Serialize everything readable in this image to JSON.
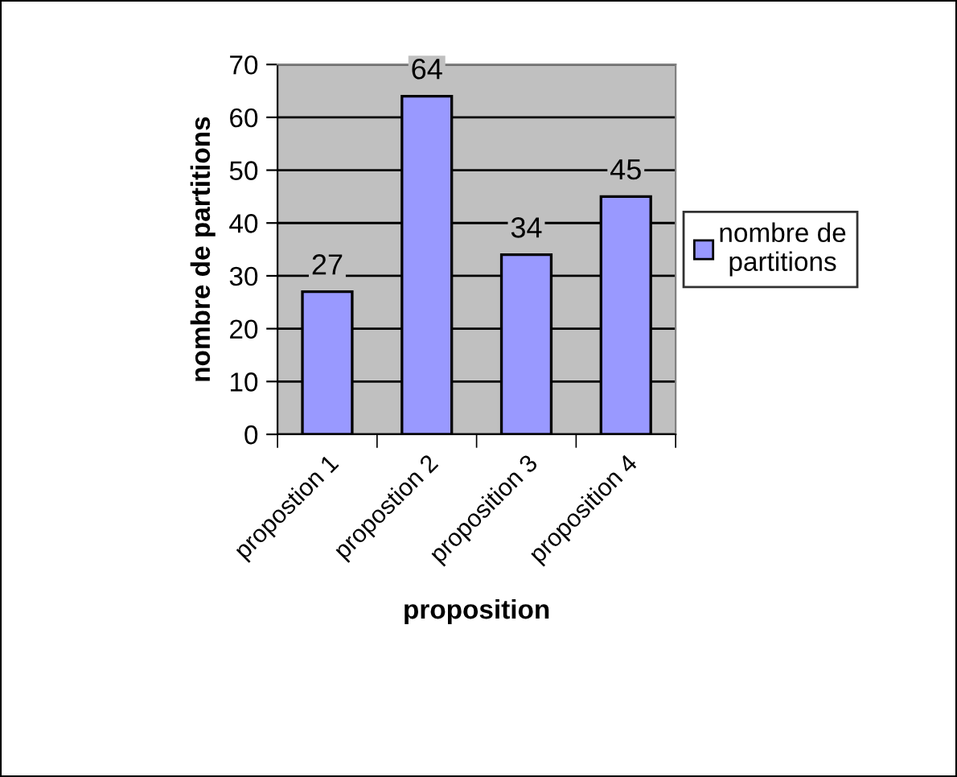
{
  "chart_data": {
    "type": "bar",
    "xlabel": "proposition",
    "ylabel": "nombre de partitions",
    "categories": [
      "propostion 1",
      "propostion 2",
      "proposition 3",
      "proposition 4"
    ],
    "series": [
      {
        "name": "nombre de partitions",
        "color": "#9999ff",
        "values": [
          27,
          64,
          34,
          45
        ]
      }
    ],
    "ylim": [
      0,
      70
    ],
    "yticks": [
      0,
      10,
      20,
      30,
      40,
      50,
      60,
      70
    ],
    "grid": "y",
    "legend": "right",
    "data_labels": true
  }
}
